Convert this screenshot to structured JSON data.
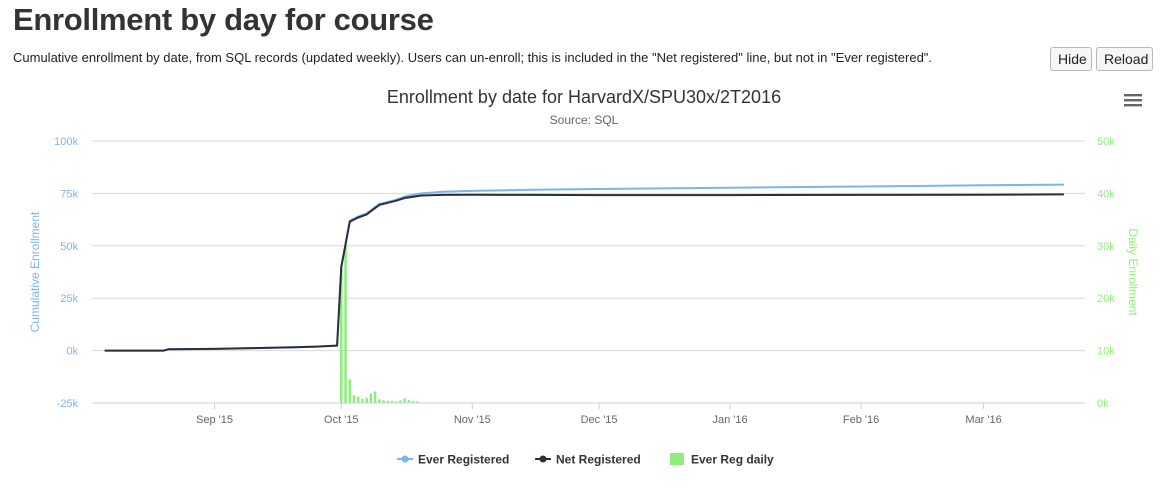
{
  "header": {
    "title": "Enrollment by day for course",
    "description": "Cumulative enrollment by date, from SQL records (updated weekly). Users can un-enroll; this is included in the \"Net registered\" line, but not in \"Ever registered\".",
    "hide_label": "Hide",
    "reload_label": "Reload"
  },
  "colors": {
    "ever": "#7cb5ec",
    "net": "#2b2f3a",
    "daily": "#90ed7d",
    "grid": "#d8d8d8",
    "axis_text": "#666666"
  },
  "chart_menu_icon": "hamburger-menu-icon",
  "chart_data": {
    "type": "line",
    "title": "Enrollment by date for HarvardX/SPU30x/2T2016",
    "subtitle": "Source: SQL",
    "x_range": [
      "2015-08-03",
      "2016-03-25"
    ],
    "x_ticks": [
      {
        "date": "2015-09-01",
        "label": "Sep '15"
      },
      {
        "date": "2015-10-01",
        "label": "Oct '15"
      },
      {
        "date": "2015-11-01",
        "label": "Nov '15"
      },
      {
        "date": "2015-12-01",
        "label": "Dec '15"
      },
      {
        "date": "2016-01-01",
        "label": "Jan '16"
      },
      {
        "date": "2016-02-01",
        "label": "Feb '16"
      },
      {
        "date": "2016-03-01",
        "label": "Mar '16"
      }
    ],
    "y_left": {
      "label": "Cumulative Enrollment",
      "range": [
        -25000,
        100000
      ],
      "ticks": [
        {
          "value": -25000,
          "label": "-25k"
        },
        {
          "value": 0,
          "label": "0k"
        },
        {
          "value": 25000,
          "label": "25k"
        },
        {
          "value": 50000,
          "label": "50k"
        },
        {
          "value": 75000,
          "label": "75k"
        },
        {
          "value": 100000,
          "label": "100k"
        }
      ]
    },
    "y_right": {
      "label": "Daily Enrollment",
      "range": [
        0,
        50000
      ],
      "ticks": [
        {
          "value": 0,
          "label": "0k"
        },
        {
          "value": 10000,
          "label": "10k"
        },
        {
          "value": 20000,
          "label": "20k"
        },
        {
          "value": 30000,
          "label": "30k"
        },
        {
          "value": 40000,
          "label": "40k"
        },
        {
          "value": 50000,
          "label": "50k"
        }
      ]
    },
    "grid": true,
    "legend_position": "bottom-center",
    "series": [
      {
        "name": "Ever Registered",
        "type": "line",
        "axis": "left",
        "points": [
          [
            "2015-08-06",
            0
          ],
          [
            "2015-08-20",
            0
          ],
          [
            "2015-08-21",
            600
          ],
          [
            "2015-09-01",
            800
          ],
          [
            "2015-09-10",
            1200
          ],
          [
            "2015-09-20",
            1600
          ],
          [
            "2015-09-25",
            1900
          ],
          [
            "2015-09-30",
            2400
          ],
          [
            "2015-10-01",
            40000
          ],
          [
            "2015-10-02",
            51000
          ],
          [
            "2015-10-03",
            62000
          ],
          [
            "2015-10-05",
            64000
          ],
          [
            "2015-10-07",
            65500
          ],
          [
            "2015-10-08",
            67000
          ],
          [
            "2015-10-10",
            70000
          ],
          [
            "2015-10-12",
            71000
          ],
          [
            "2015-10-14",
            72000
          ],
          [
            "2015-10-16",
            73500
          ],
          [
            "2015-10-20",
            75000
          ],
          [
            "2015-10-25",
            75800
          ],
          [
            "2015-11-01",
            76200
          ],
          [
            "2015-11-15",
            76700
          ],
          [
            "2015-12-01",
            77100
          ],
          [
            "2016-01-01",
            77700
          ],
          [
            "2016-02-01",
            78300
          ],
          [
            "2016-03-01",
            78900
          ],
          [
            "2016-03-20",
            79200
          ]
        ]
      },
      {
        "name": "Net Registered",
        "type": "line",
        "axis": "left",
        "points": [
          [
            "2015-08-06",
            0
          ],
          [
            "2015-08-20",
            0
          ],
          [
            "2015-08-21",
            600
          ],
          [
            "2015-09-01",
            800
          ],
          [
            "2015-09-10",
            1200
          ],
          [
            "2015-09-20",
            1600
          ],
          [
            "2015-09-25",
            1900
          ],
          [
            "2015-09-30",
            2400
          ],
          [
            "2015-10-01",
            40000
          ],
          [
            "2015-10-02",
            50500
          ],
          [
            "2015-10-03",
            61500
          ],
          [
            "2015-10-05",
            63500
          ],
          [
            "2015-10-07",
            65000
          ],
          [
            "2015-10-08",
            66500
          ],
          [
            "2015-10-10",
            69500
          ],
          [
            "2015-10-12",
            70500
          ],
          [
            "2015-10-14",
            71500
          ],
          [
            "2015-10-16",
            72800
          ],
          [
            "2015-10-20",
            74000
          ],
          [
            "2015-10-25",
            74300
          ],
          [
            "2015-11-01",
            74400
          ],
          [
            "2015-11-15",
            74300
          ],
          [
            "2015-12-01",
            74200
          ],
          [
            "2016-01-01",
            74200
          ],
          [
            "2016-02-01",
            74300
          ],
          [
            "2016-03-01",
            74400
          ],
          [
            "2016-03-20",
            74500
          ]
        ]
      },
      {
        "name": "Ever Reg daily",
        "type": "column",
        "axis": "right",
        "points": [
          [
            "2015-10-01",
            26000
          ],
          [
            "2015-10-02",
            30000
          ],
          [
            "2015-10-03",
            4500
          ],
          [
            "2015-10-04",
            1500
          ],
          [
            "2015-10-05",
            1200
          ],
          [
            "2015-10-06",
            800
          ],
          [
            "2015-10-07",
            1000
          ],
          [
            "2015-10-08",
            1800
          ],
          [
            "2015-10-09",
            2200
          ],
          [
            "2015-10-10",
            700
          ],
          [
            "2015-10-11",
            500
          ],
          [
            "2015-10-12",
            400
          ],
          [
            "2015-10-13",
            350
          ],
          [
            "2015-10-14",
            300
          ],
          [
            "2015-10-15",
            500
          ],
          [
            "2015-10-16",
            900
          ],
          [
            "2015-10-17",
            600
          ],
          [
            "2015-10-18",
            400
          ],
          [
            "2015-10-19",
            300
          ]
        ]
      }
    ]
  }
}
